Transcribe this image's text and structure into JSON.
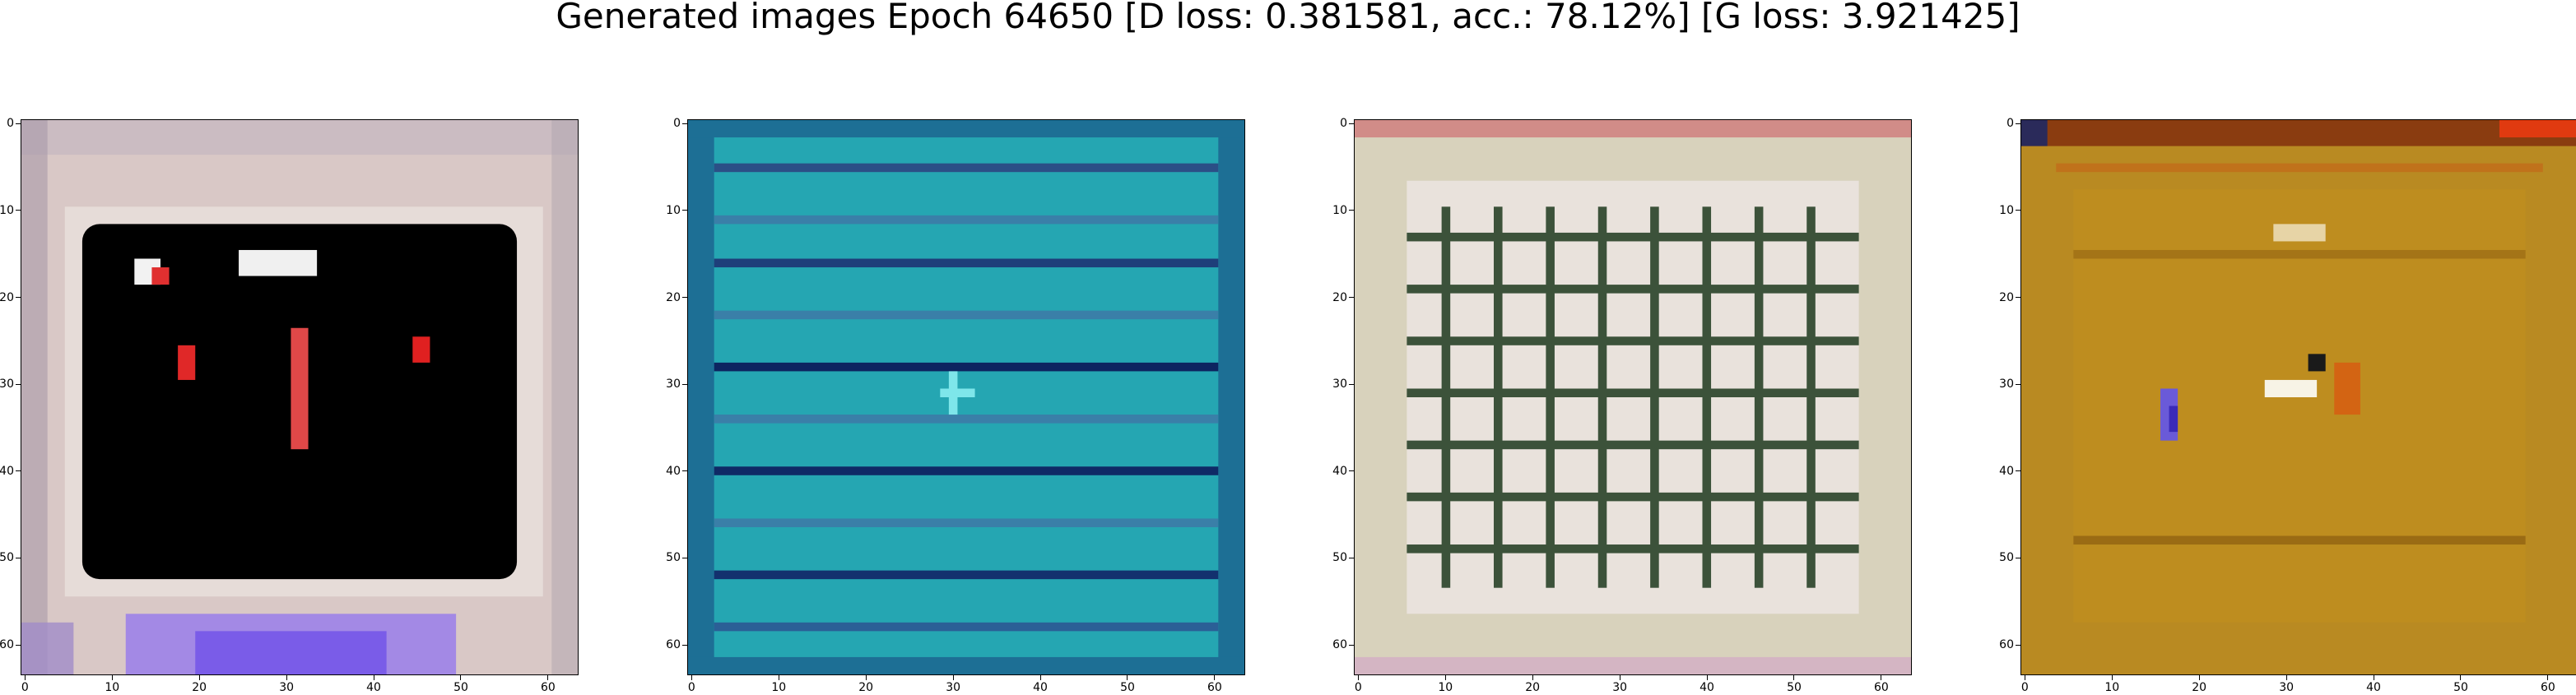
{
  "title": "Generated images Epoch 64650 [D loss: 0.381581, acc.: 78.12%] [G loss: 3.921425]",
  "panels": [
    {
      "image": "generated-sample-1",
      "description_colors": [
        "#d8c8c8",
        "#000000",
        "#e02020",
        "#8a66e8"
      ]
    },
    {
      "image": "generated-sample-2",
      "description_colors": [
        "#1f9fb0",
        "#0a2a5a",
        "#3ad0d8"
      ]
    },
    {
      "image": "generated-sample-3",
      "description_colors": [
        "#d6d0bc",
        "#1a3018",
        "#f0eaea"
      ]
    },
    {
      "image": "generated-sample-4",
      "description_colors": [
        "#b8861e",
        "#d25a10",
        "#7a70d0",
        "#f8f0e0"
      ]
    }
  ],
  "axes": {
    "xticks": [
      "0",
      "10",
      "20",
      "30",
      "40",
      "50",
      "60"
    ],
    "yticks": [
      "0",
      "10",
      "20",
      "30",
      "40",
      "50",
      "60"
    ],
    "extent": [
      0,
      64
    ]
  }
}
